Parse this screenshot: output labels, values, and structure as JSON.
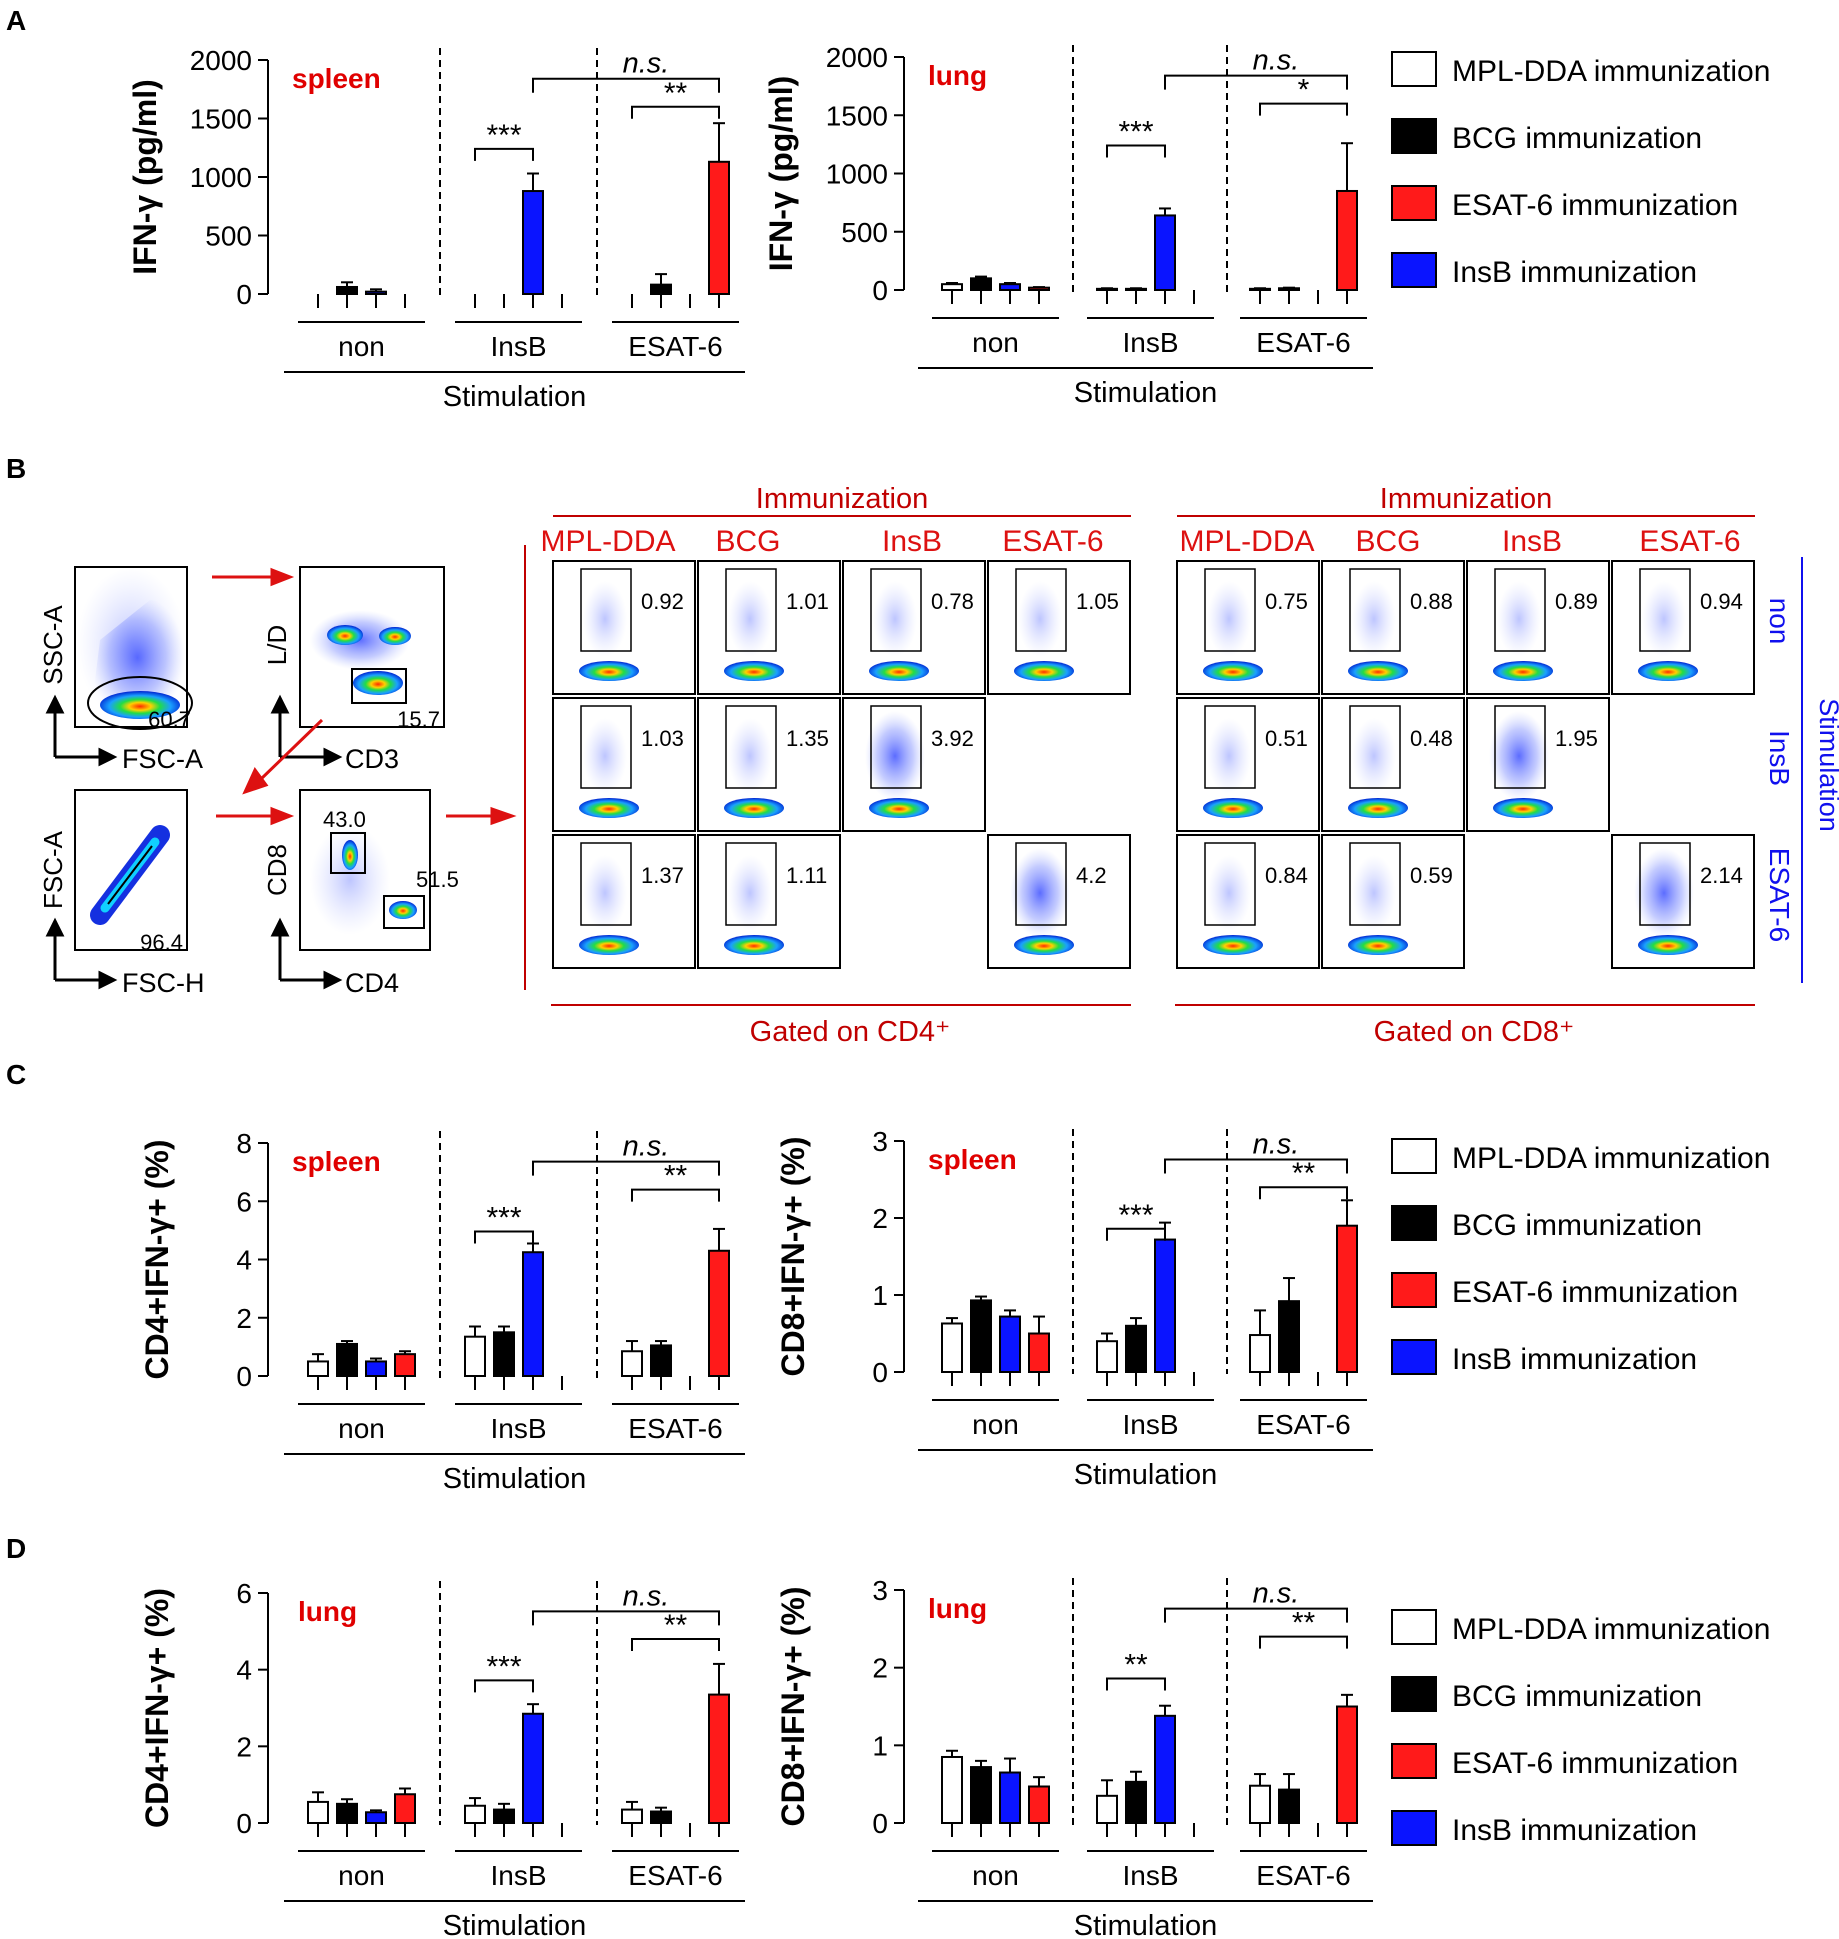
{
  "legend": {
    "items": [
      {
        "label": "MPL-DDA immunization",
        "color": "#ffffff"
      },
      {
        "label": "BCG immunization",
        "color": "#000000"
      },
      {
        "label": "ESAT-6 immunization",
        "color": "#ff1a1a"
      },
      {
        "label": "InsB immunization",
        "color": "#0a14ff"
      }
    ]
  },
  "panels": {
    "A": {
      "letter": "A"
    },
    "B": {
      "letter": "B"
    },
    "C": {
      "letter": "C"
    },
    "D": {
      "letter": "D"
    }
  },
  "chart_data": [
    {
      "id": "A-spleen",
      "type": "bar",
      "panel": "A",
      "title": "spleen",
      "ylabel": "IFN-γ (pg/ml)",
      "xlabel": "Stimulation",
      "ylim": [
        0,
        2000
      ],
      "yticks": [
        "0",
        "500",
        "1000",
        "1500",
        "2000"
      ],
      "groups": [
        "non",
        "InsB",
        "ESAT-6"
      ],
      "series": [
        {
          "name": "MPL-DDA immunization",
          "values": [
            0,
            0,
            0
          ],
          "errors": [
            0,
            0,
            0
          ]
        },
        {
          "name": "BCG immunization",
          "values": [
            60,
            0,
            80
          ],
          "errors": [
            40,
            0,
            90
          ]
        },
        {
          "name": "InsB immunization",
          "values": [
            20,
            880,
            0
          ],
          "errors": [
            20,
            150,
            0
          ]
        },
        {
          "name": "ESAT-6 immunization",
          "values": [
            0,
            0,
            1130
          ],
          "errors": [
            0,
            0,
            330
          ]
        }
      ],
      "annotations": [
        "***",
        "**",
        "n.s."
      ]
    },
    {
      "id": "A-lung",
      "type": "bar",
      "panel": "A",
      "title": "lung",
      "ylabel": "IFN-γ (pg/ml)",
      "xlabel": "Stimulation",
      "ylim": [
        0,
        2000
      ],
      "yticks": [
        "0",
        "500",
        "1000",
        "1500",
        "2000"
      ],
      "groups": [
        "non",
        "InsB",
        "ESAT-6"
      ],
      "series": [
        {
          "name": "MPL-DDA immunization",
          "values": [
            50,
            10,
            10
          ],
          "errors": [
            10,
            5,
            5
          ]
        },
        {
          "name": "BCG immunization",
          "values": [
            100,
            10,
            15
          ],
          "errors": [
            15,
            5,
            5
          ]
        },
        {
          "name": "InsB immunization",
          "values": [
            50,
            640,
            0
          ],
          "errors": [
            10,
            60,
            0
          ]
        },
        {
          "name": "ESAT-6 immunization",
          "values": [
            20,
            0,
            850
          ],
          "errors": [
            5,
            0,
            410
          ]
        }
      ],
      "annotations": [
        "***",
        "*",
        "n.s."
      ]
    },
    {
      "id": "C-cd4-spleen",
      "type": "bar",
      "panel": "C",
      "title": "spleen",
      "ylabel": "CD4+IFN-γ+ (%)",
      "xlabel": "Stimulation",
      "ylim": [
        0,
        8
      ],
      "yticks": [
        "0",
        "2",
        "4",
        "6",
        "8"
      ],
      "groups": [
        "non",
        "InsB",
        "ESAT-6"
      ],
      "series": [
        {
          "name": "MPL-DDA immunization",
          "values": [
            0.5,
            1.35,
            0.85
          ],
          "errors": [
            0.25,
            0.35,
            0.35
          ]
        },
        {
          "name": "BCG immunization",
          "values": [
            1.1,
            1.5,
            1.05
          ],
          "errors": [
            0.1,
            0.2,
            0.15
          ]
        },
        {
          "name": "InsB immunization",
          "values": [
            0.5,
            4.25,
            0
          ],
          "errors": [
            0.1,
            0.3,
            0
          ]
        },
        {
          "name": "ESAT-6 immunization",
          "values": [
            0.75,
            0,
            4.3
          ],
          "errors": [
            0.1,
            0,
            0.75
          ]
        }
      ],
      "annotations": [
        "***",
        "**",
        "n.s."
      ]
    },
    {
      "id": "C-cd8-spleen",
      "type": "bar",
      "panel": "C",
      "title": "spleen",
      "ylabel": "CD8+IFN-γ+ (%)",
      "xlabel": "Stimulation",
      "ylim": [
        0,
        3
      ],
      "yticks": [
        "0",
        "1",
        "2",
        "3"
      ],
      "groups": [
        "non",
        "InsB",
        "ESAT-6"
      ],
      "series": [
        {
          "name": "MPL-DDA immunization",
          "values": [
            0.63,
            0.4,
            0.48
          ],
          "errors": [
            0.07,
            0.1,
            0.32
          ]
        },
        {
          "name": "BCG immunization",
          "values": [
            0.93,
            0.6,
            0.92
          ],
          "errors": [
            0.05,
            0.1,
            0.3
          ]
        },
        {
          "name": "InsB immunization",
          "values": [
            0.72,
            1.72,
            0
          ],
          "errors": [
            0.08,
            0.22,
            0
          ]
        },
        {
          "name": "ESAT-6 immunization",
          "values": [
            0.5,
            0,
            1.9
          ],
          "errors": [
            0.22,
            0,
            0.33
          ]
        }
      ],
      "annotations": [
        "***",
        "**",
        "n.s."
      ]
    },
    {
      "id": "D-cd4-lung",
      "type": "bar",
      "panel": "D",
      "title": "lung",
      "ylabel": "CD4+IFN-γ+ (%)",
      "xlabel": "Stimulation",
      "ylim": [
        0,
        6
      ],
      "yticks": [
        "0",
        "2",
        "4",
        "6"
      ],
      "groups": [
        "non",
        "InsB",
        "ESAT-6"
      ],
      "series": [
        {
          "name": "MPL-DDA immunization",
          "values": [
            0.55,
            0.45,
            0.35
          ],
          "errors": [
            0.25,
            0.2,
            0.2
          ]
        },
        {
          "name": "BCG immunization",
          "values": [
            0.5,
            0.35,
            0.3
          ],
          "errors": [
            0.12,
            0.15,
            0.1
          ]
        },
        {
          "name": "InsB immunization",
          "values": [
            0.28,
            2.85,
            0
          ],
          "errors": [
            0.05,
            0.25,
            0
          ]
        },
        {
          "name": "ESAT-6 immunization",
          "values": [
            0.75,
            0,
            3.35
          ],
          "errors": [
            0.15,
            0,
            0.8
          ]
        }
      ],
      "annotations": [
        "***",
        "**",
        "n.s."
      ]
    },
    {
      "id": "D-cd8-lung",
      "type": "bar",
      "panel": "D",
      "title": "lung",
      "ylabel": "CD8+IFN-γ+ (%)",
      "xlabel": "Stimulation",
      "ylim": [
        0,
        3
      ],
      "yticks": [
        "0",
        "1",
        "2",
        "3"
      ],
      "groups": [
        "non",
        "InsB",
        "ESAT-6"
      ],
      "series": [
        {
          "name": "MPL-DDA immunization",
          "values": [
            0.85,
            0.35,
            0.48
          ],
          "errors": [
            0.08,
            0.2,
            0.15
          ]
        },
        {
          "name": "BCG immunization",
          "values": [
            0.72,
            0.53,
            0.43
          ],
          "errors": [
            0.08,
            0.13,
            0.2
          ]
        },
        {
          "name": "InsB immunization",
          "values": [
            0.65,
            1.38,
            0
          ],
          "errors": [
            0.18,
            0.13,
            0
          ]
        },
        {
          "name": "ESAT-6 immunization",
          "values": [
            0.47,
            0,
            1.5
          ],
          "errors": [
            0.12,
            0,
            0.15
          ]
        }
      ],
      "annotations": [
        "**",
        "**",
        "n.s."
      ]
    }
  ],
  "flow": {
    "gating": {
      "p1": {
        "xlabel": "FSC-A",
        "ylabel": "SSC-A",
        "value": "60.7"
      },
      "p2": {
        "xlabel": "CD3",
        "ylabel": "L/D",
        "value": "15.7"
      },
      "p3": {
        "xlabel": "FSC-H",
        "ylabel": "FSC-A",
        "value": "96.4"
      },
      "p4": {
        "xlabel": "CD4",
        "ylabel": "CD8",
        "value_cd8": "43.0",
        "value_cd4": "51.5"
      }
    },
    "immunization_label": "Immunization",
    "stimulation_label": "Stimulation",
    "columns": [
      "MPL-DDA",
      "BCG",
      "InsB",
      "ESAT-6"
    ],
    "rows": [
      "non",
      "InsB",
      "ESAT-6"
    ],
    "cd4": {
      "gated_label": "Gated on CD4⁺",
      "values": [
        [
          "0.92",
          "1.01",
          "0.78",
          "1.05"
        ],
        [
          "1.03",
          "1.35",
          "3.92",
          ""
        ],
        [
          "1.37",
          "1.11",
          "",
          "4.2"
        ]
      ]
    },
    "cd8": {
      "gated_label": "Gated on CD8⁺",
      "values": [
        [
          "0.75",
          "0.88",
          "0.89",
          "0.94"
        ],
        [
          "0.51",
          "0.48",
          "1.95",
          ""
        ],
        [
          "0.84",
          "0.59",
          "",
          "2.14"
        ]
      ]
    }
  }
}
